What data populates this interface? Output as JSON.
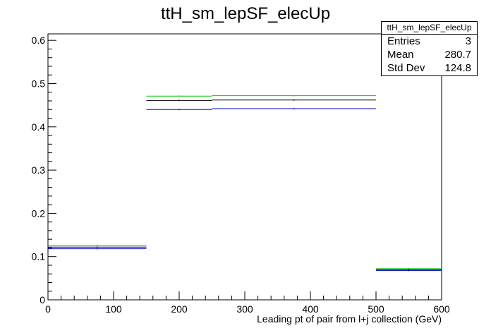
{
  "chart_data": {
    "type": "step",
    "title": "ttH_sm_lepSF_elecUp",
    "xlabel": "Leading pt of pair from l+j collection (GeV)",
    "ylabel": "",
    "xlim": [
      0,
      600
    ],
    "ylim": [
      0,
      0.615
    ],
    "x_ticks": [
      "0",
      "100",
      "200",
      "300",
      "400",
      "500",
      "600"
    ],
    "y_ticks": [
      "0",
      "0.1",
      "0.2",
      "0.3",
      "0.4",
      "0.5",
      "0.6"
    ],
    "bin_edges": [
      0,
      150,
      250,
      500,
      600
    ],
    "series": [
      {
        "color": "#00cc00",
        "values": [
          0.126,
          0.471,
          0.472,
          0.072
        ]
      },
      {
        "color": "#000000",
        "values": [
          0.122,
          0.461,
          0.462,
          0.07
        ]
      },
      {
        "color": "#0000cc",
        "values": [
          0.118,
          0.44,
          0.442,
          0.068
        ]
      }
    ],
    "stats": {
      "title": "ttH_sm_lepSF_elecUp",
      "rows": [
        {
          "label": "Entries",
          "value": "3"
        },
        {
          "label": "Mean",
          "value": "280.7"
        },
        {
          "label": "Std Dev",
          "value": "124.8"
        }
      ]
    }
  }
}
